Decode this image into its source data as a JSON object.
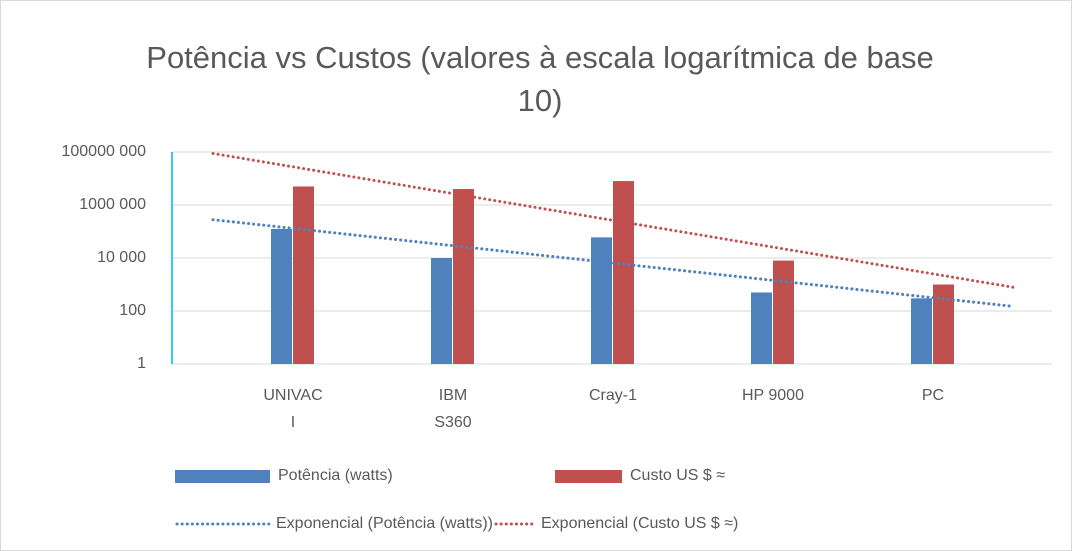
{
  "chart_data": {
    "type": "bar",
    "title": "Potência vs Custos (valores à escala logarítmica de base 10)",
    "categories": [
      "UNIVAC I",
      "IBM S360",
      "Cray-1",
      "HP 9000",
      "PC"
    ],
    "series": [
      {
        "name": "Potência (watts)",
        "color": "#4f81bd",
        "values": [
          125000,
          10000,
          60000,
          500,
          300
        ]
      },
      {
        "name": "Custo US $ ≈",
        "color": "#c0504d",
        "values": [
          5000000,
          4000000,
          8000000,
          8000,
          1000
        ]
      }
    ],
    "trendlines": [
      {
        "name": "Exponencial (Potência (watts))",
        "series": 0,
        "kind": "exponential",
        "color": "#4f81bd"
      },
      {
        "name": "Exponencial (Custo US $ ≈)",
        "series": 1,
        "kind": "exponential",
        "color": "#c0504d"
      }
    ],
    "log_scale": true,
    "ylim": [
      1,
      100000000
    ],
    "yticks": [
      {
        "value": 1,
        "label": "1"
      },
      {
        "value": 100,
        "label": "100"
      },
      {
        "value": 10000,
        "label": "10 000"
      },
      {
        "value": 1000000,
        "label": "1000 000"
      },
      {
        "value": 100000000,
        "label": "100000 000"
      }
    ],
    "grid": true
  }
}
